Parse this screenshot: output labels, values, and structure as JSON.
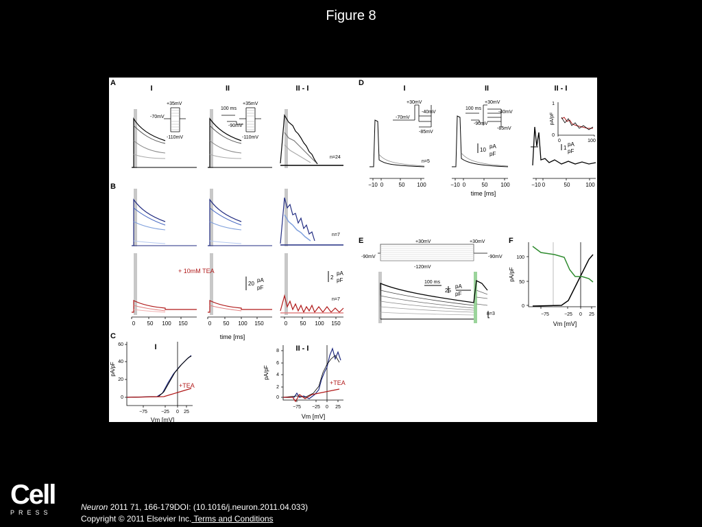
{
  "slide_title": "Figure 8",
  "logo": {
    "word": "Cell",
    "sub": "PRESS"
  },
  "citation": {
    "journal": "Neuron",
    "ref": " 2011 71, 166-179DOI: (10.1016/j.neuron.2011.04.033)",
    "copyright": "Copyright © 2011 Elsevier Inc.",
    "terms_link": " Terms and Conditions"
  },
  "figure": {
    "panel_letters": {
      "A": "A",
      "B": "B",
      "C": "C",
      "D": "D",
      "E": "E",
      "F": "F"
    },
    "col_I": "I",
    "col_II": "II",
    "col_II_I": "II - I",
    "A_protocol": {
      "top": "+35mV",
      "hold": "-70mV",
      "bottom": "-110mV",
      "time": "100 ms",
      "pre": "-90mV"
    },
    "D_protocol": {
      "top": "+30mV",
      "hold": "-70mV",
      "mid": "-40mV",
      "bottom": "-85mV",
      "time": "100 ms",
      "pre": "-90mV"
    },
    "n_A": "n=24",
    "n_B": "n=7",
    "n_TEA": "n=7",
    "n_D": "n=5",
    "n_E": "n=3",
    "tea_label": "+ 10mM TEA",
    "tea_short": "+TEA",
    "scale": {
      "s20": "20",
      "s2": "2",
      "s10": "10",
      "s25": "25",
      "s1": "1",
      "pA": "pA",
      "pF": "pF"
    },
    "time_axis": {
      "ticks": [
        "0",
        "50",
        "100",
        "150"
      ],
      "label": "time [ms]"
    },
    "D_axis": {
      "ticks": [
        "−10",
        "0",
        "50",
        "100"
      ],
      "label": "time [ms]"
    },
    "vm_axis": {
      "ticks": [
        "−75",
        "−25",
        "0",
        "25"
      ],
      "label": "Vm [mV]"
    },
    "C_I_yticks": [
      "60",
      "40",
      "20",
      "0"
    ],
    "C_III_yticks": [
      "8",
      "6",
      "4",
      "2",
      "0"
    ],
    "F_yticks": [
      "100",
      "50",
      "0"
    ],
    "inset_yticks": [
      "1",
      "0"
    ],
    "inset_xticks": [
      "0",
      "100"
    ],
    "ylabel_pApF": "pA/pF",
    "E_protocol": {
      "top1": "+30mV",
      "top2": "+30mV",
      "left": "-90mV",
      "right": "-90mV",
      "bottom": "-120mV",
      "time": "100 ms"
    }
  }
}
